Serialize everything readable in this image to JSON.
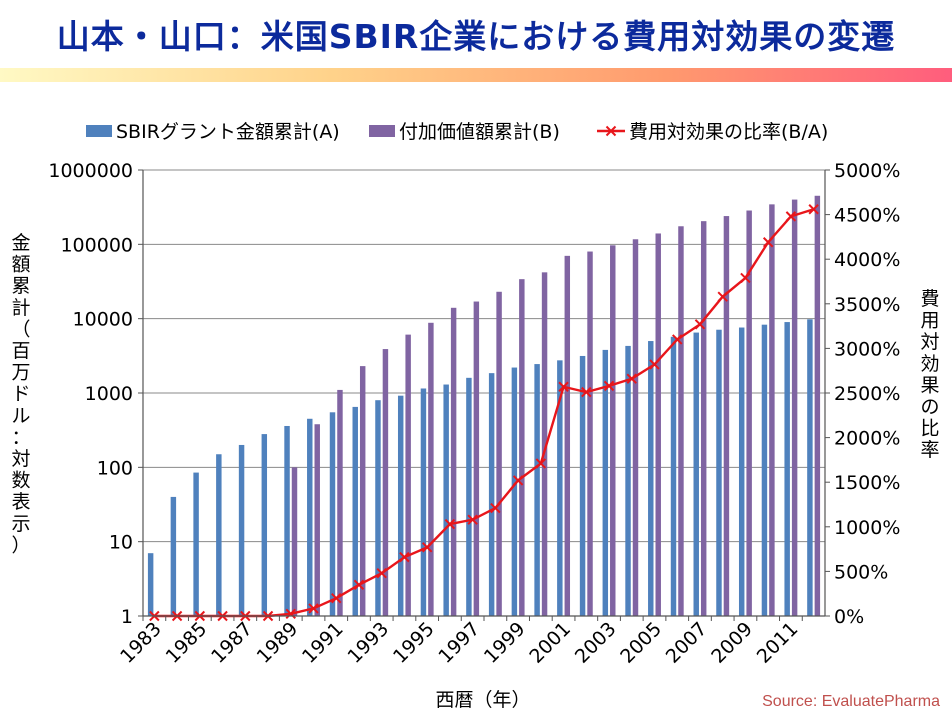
{
  "slide": {
    "title": "山本・山口：米国SBIR企業における費用対効果の変遷",
    "source": "Source:  EvaluatePharma"
  },
  "colors": {
    "series_a": "#4f81bd",
    "series_b": "#8064a2",
    "ratio_line": "#e8161b",
    "ratio_marker": "#e8161b",
    "title": "#0c2a9c",
    "source": "#c0504d"
  },
  "chart_data": {
    "type": "bar",
    "xlabel": "西暦（年）",
    "ylabel": "金額累計（百万ドル：対数表示）",
    "y2label": "費用対効果の比率",
    "x": [
      1983,
      1984,
      1985,
      1986,
      1987,
      1988,
      1989,
      1990,
      1991,
      1992,
      1993,
      1994,
      1995,
      1996,
      1997,
      1998,
      1999,
      2000,
      2001,
      2002,
      2003,
      2004,
      2005,
      2006,
      2007,
      2008,
      2009,
      2010,
      2011,
      2012
    ],
    "x_tick_labels": [
      "1983",
      "1985",
      "1987",
      "1989",
      "1991",
      "1993",
      "1995",
      "1997",
      "1999",
      "2001",
      "2003",
      "2005",
      "2007",
      "2009",
      "2011"
    ],
    "y_scale": "log",
    "ylim": [
      1,
      1000000
    ],
    "y_tick_labels": [
      "1",
      "10",
      "100",
      "1000",
      "10000",
      "100000",
      "1000000"
    ],
    "y2lim": [
      0,
      5000
    ],
    "y2_tick_labels": [
      "0%",
      "500%",
      "1000%",
      "1500%",
      "2000%",
      "2500%",
      "3000%",
      "3500%",
      "4000%",
      "4500%",
      "5000%"
    ],
    "legend_position": "top",
    "grid": "horizontal",
    "series": [
      {
        "name": "SBIRグラント金額累計(A)",
        "kind": "bar",
        "axis": "left",
        "values": [
          7,
          40,
          85,
          150,
          200,
          280,
          360,
          450,
          550,
          650,
          800,
          920,
          1150,
          1300,
          1600,
          1850,
          2200,
          2450,
          2750,
          3150,
          3800,
          4300,
          5000,
          5700,
          6500,
          7100,
          7600,
          8300,
          9000,
          9800
        ]
      },
      {
        "name": "付加価値額累計(B)",
        "kind": "bar",
        "axis": "left",
        "values": [
          null,
          null,
          null,
          null,
          null,
          null,
          100,
          380,
          1100,
          2300,
          3900,
          6100,
          8800,
          14000,
          17000,
          23000,
          34000,
          42000,
          70000,
          80000,
          97000,
          117000,
          140000,
          175000,
          205000,
          240000,
          285000,
          345000,
          400000,
          450000
        ]
      },
      {
        "name": "費用対効果の比率(B/A)",
        "kind": "line",
        "axis": "right",
        "values": [
          0,
          0,
          0,
          0,
          0,
          0,
          25,
          85,
          200,
          350,
          480,
          660,
          770,
          1030,
          1080,
          1210,
          1520,
          1710,
          2570,
          2510,
          2580,
          2660,
          2820,
          3100,
          3270,
          3580,
          3790,
          4190,
          4480,
          4560
        ]
      }
    ]
  }
}
